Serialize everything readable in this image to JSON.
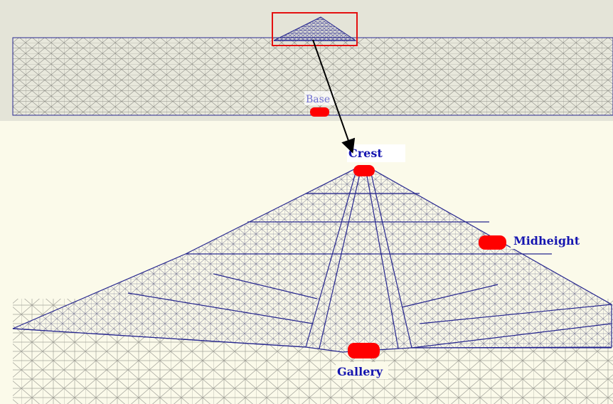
{
  "labels": {
    "base": "Base",
    "crest": "Crest",
    "midheight": "Midheight",
    "gallery": "Gallery"
  },
  "colors": {
    "top_panel_bg": "#e4e4d8",
    "bottom_panel_bg": "#fbfaea",
    "mesh_gray": "#9a9a9a",
    "dam_mesh_blue": "#27278f",
    "sensor_red": "#ff0000",
    "label_blue": "#1515b0",
    "zoom_box_red": "#e41010",
    "arrow_black": "#000000"
  }
}
